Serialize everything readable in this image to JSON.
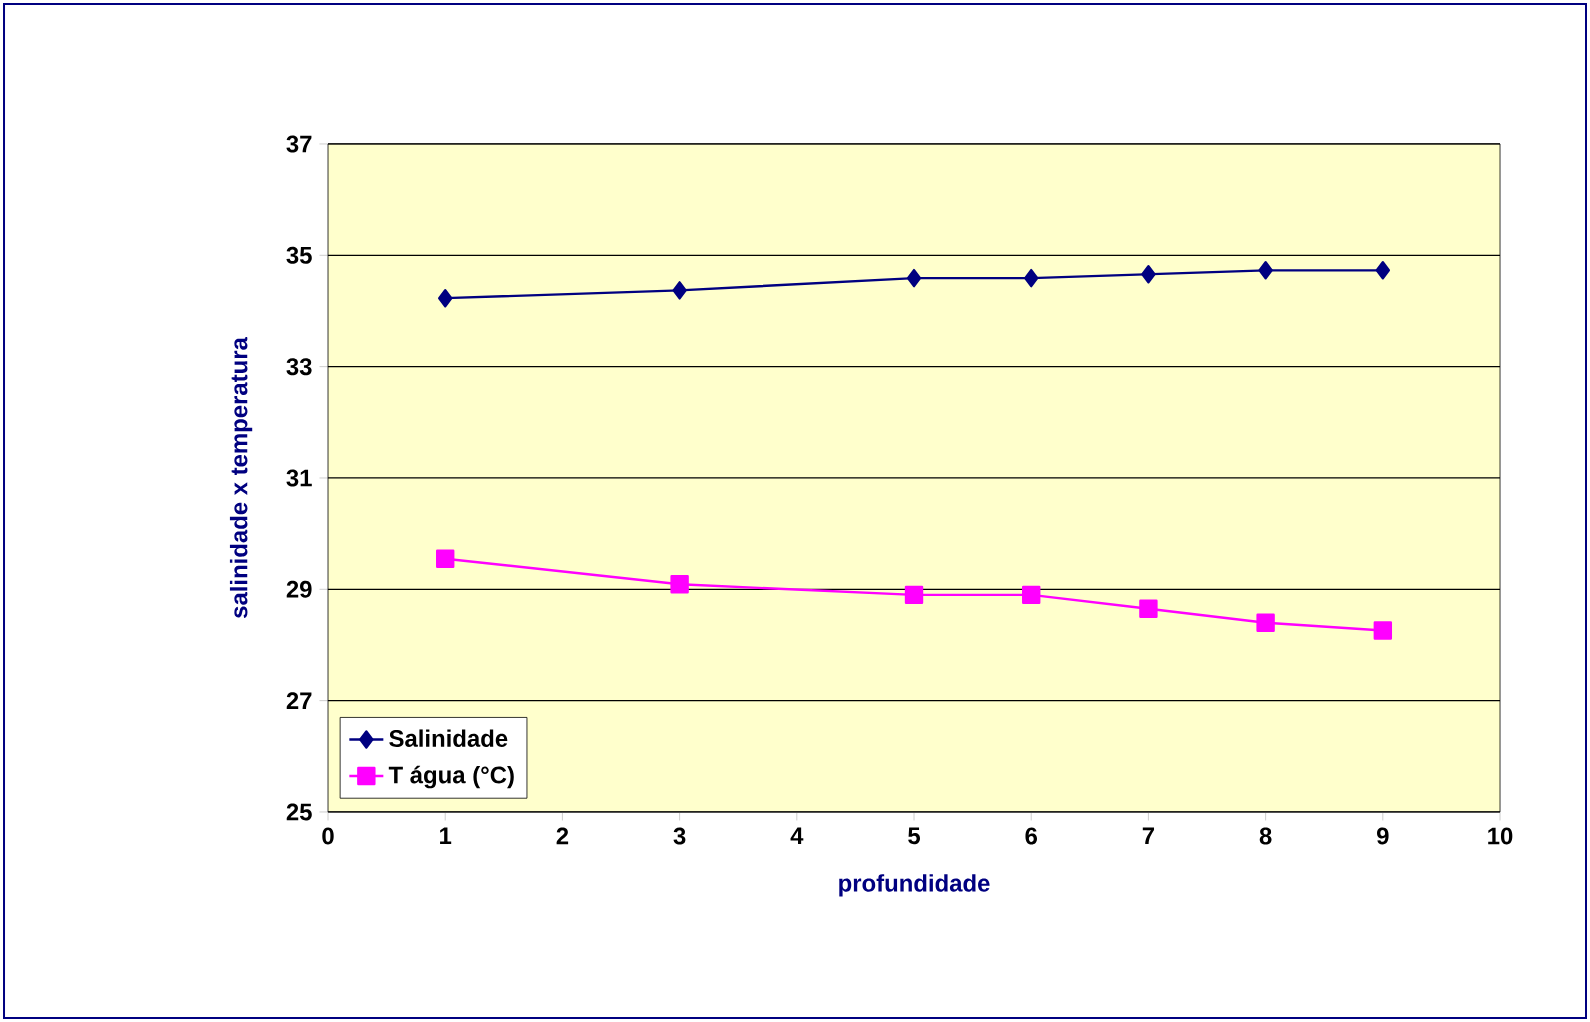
{
  "chart_data": {
    "type": "line",
    "xlabel": "profundidade",
    "ylabel": "salinidade x temperatura",
    "x": [
      1,
      3,
      5,
      6,
      7,
      8,
      9
    ],
    "series": [
      {
        "name": "Salinidade",
        "color": "#000080",
        "marker": "diamond",
        "values": [
          34.23,
          34.37,
          34.59,
          34.59,
          34.66,
          34.73,
          34.73
        ]
      },
      {
        "name": "T água (°C)",
        "color": "#ff00ff",
        "marker": "square",
        "values": [
          29.55,
          29.09,
          28.9,
          28.9,
          28.65,
          28.4,
          28.26
        ]
      }
    ],
    "xlim": [
      0,
      10
    ],
    "xticks": [
      0,
      1,
      2,
      3,
      4,
      5,
      6,
      7,
      8,
      9,
      10
    ],
    "ylim": [
      25,
      37
    ],
    "yticks": [
      25,
      27,
      29,
      31,
      33,
      35,
      37
    ],
    "grid": "y",
    "legend": "bottom left",
    "line_style": "solid"
  }
}
